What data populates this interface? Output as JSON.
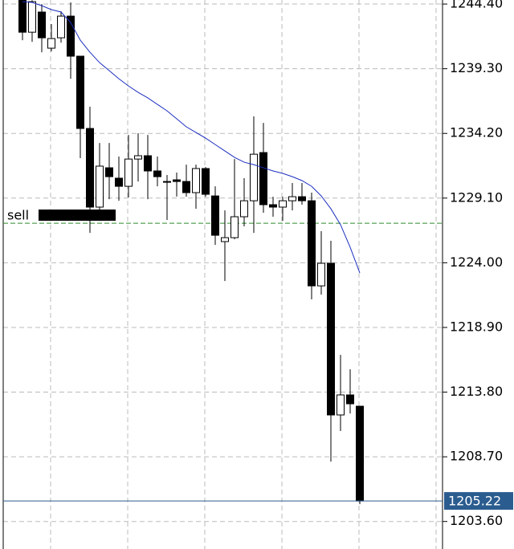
{
  "chart_data": {
    "type": "candlestick",
    "series": [
      {
        "name": null,
        "up_color": "#ffffff",
        "down_color": "#000000",
        "open": [
          1244.7,
          1242.18,
          1243.77,
          1240.92,
          1241.74,
          1243.45,
          1240.29,
          1234.59,
          1228.39,
          1231.49,
          1230.67,
          1230.03,
          1232.18,
          1232.44,
          1231.24,
          1230.41,
          1230.54,
          1230.41,
          1229.53,
          1231.43,
          1229.27,
          1225.67,
          1225.98,
          1227.63,
          1228.89,
          1232.69,
          1228.58,
          1228.39,
          1228.89,
          1229.21,
          1228.89,
          1222.18,
          1223.96,
          1212.0,
          1213.58,
          1212.69
        ],
        "high": [
          1244.7,
          1244.7,
          1244.4,
          1242.82,
          1243.83,
          1244.53,
          1240.29,
          1236.3,
          1233.45,
          1233.45,
          1232.38,
          1234.08,
          1234.21,
          1234.08,
          1232.38,
          1230.92,
          1231.11,
          1231.74,
          1231.74,
          1231.55,
          1230.03,
          1228.13,
          1232.18,
          1230.67,
          1235.54,
          1235.03,
          1229.21,
          1229.21,
          1230.29,
          1230.29,
          1229.53,
          1226.49,
          1225.73,
          1216.74,
          1215.6,
          1212.69
        ],
        "low": [
          1241.55,
          1241.42,
          1240.6,
          1240.67,
          1241.36,
          1238.51,
          1232.25,
          1226.36,
          1227.31,
          1229.02,
          1228.89,
          1229.15,
          1230.41,
          1229.02,
          1230.03,
          1227.37,
          1229.22,
          1229.21,
          1228.26,
          1229.21,
          1225.41,
          1222.56,
          1225.85,
          1226.87,
          1226.36,
          1227.94,
          1227.63,
          1227.31,
          1228.13,
          1228.58,
          1221.11,
          1221.49,
          1208.32,
          1210.73,
          1212.12,
          1204.97
        ],
        "close": [
          1242.18,
          1244.59,
          1241.74,
          1241.68,
          1243.45,
          1240.29,
          1234.59,
          1228.39,
          1231.62,
          1230.79,
          1230.03,
          1232.18,
          1232.44,
          1231.24,
          1230.79,
          1230.41,
          1230.41,
          1229.53,
          1231.43,
          1229.4,
          1226.17,
          1225.98,
          1227.63,
          1228.89,
          1232.56,
          1228.58,
          1228.39,
          1228.89,
          1229.21,
          1228.89,
          1222.18,
          1223.96,
          1212.0,
          1213.58,
          1212.88,
          1205.22
        ]
      },
      {
        "name": null,
        "type": "line",
        "color": "#1c2fc0",
        "values": [
          1244.59,
          1244.53,
          1244.27,
          1243.96,
          1243.77,
          1242.94,
          1241.55,
          1240.6,
          1239.78,
          1239.15,
          1238.51,
          1237.94,
          1237.44,
          1237.0,
          1236.49,
          1235.98,
          1235.35,
          1234.72,
          1234.27,
          1233.83,
          1233.32,
          1232.82,
          1232.31,
          1231.93,
          1231.74,
          1231.49,
          1231.24,
          1231.05,
          1230.79,
          1230.48,
          1230.03,
          1229.27,
          1228.26,
          1227.0,
          1225.22,
          1223.2
        ]
      }
    ],
    "order": {
      "label": "sell",
      "value": 1227.12,
      "color": "#2e8b2e"
    },
    "current_price": {
      "value": 1205.22,
      "label": "1205.22",
      "color": "#2b5c8f"
    },
    "ylim": [
      1201.43,
      1244.72
    ],
    "yticks": [
      {
        "value": 1244.4,
        "label": "1244.40"
      },
      {
        "value": 1239.3,
        "label": "1239.30"
      },
      {
        "value": 1234.2,
        "label": "1234.20"
      },
      {
        "value": 1229.1,
        "label": "1229.10"
      },
      {
        "value": 1224,
        "label": "1224.00"
      },
      {
        "value": 1218.9,
        "label": "1218.90"
      },
      {
        "value": 1213.8,
        "label": "1213.80"
      },
      {
        "value": 1208.7,
        "label": "1208.70"
      },
      {
        "value": 1203.6,
        "label": "1203.60"
      }
    ],
    "grid": true
  }
}
